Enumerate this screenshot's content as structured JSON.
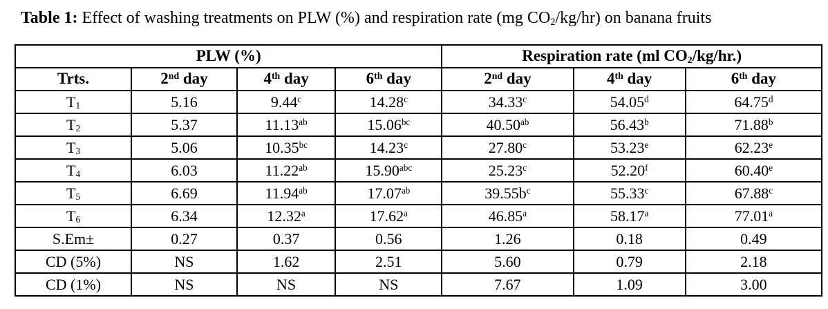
{
  "colors": {
    "background": "#ffffff",
    "text": "#000000",
    "border": "#000000"
  },
  "caption": {
    "segments": [
      {
        "t": "Table 1:",
        "bold": true
      },
      {
        "t": " Effect of washing treatments on PLW (%) and respiration rate (mg CO"
      },
      {
        "t": "2",
        "sub": true
      },
      {
        "t": "/kg/hr) on banana fruits"
      }
    ]
  },
  "table": {
    "group_headers": [
      {
        "colspan": 4,
        "segments": [
          {
            "t": "PLW (%)"
          }
        ]
      },
      {
        "colspan": 3,
        "segments": [
          {
            "t": "Respiration rate (ml CO"
          },
          {
            "t": "2",
            "sub": true
          },
          {
            "t": "/kg/hr.)"
          }
        ]
      }
    ],
    "column_headers": [
      {
        "segments": [
          {
            "t": "Trts."
          }
        ]
      },
      {
        "segments": [
          {
            "t": "2"
          },
          {
            "t": "nd",
            "sup": true
          },
          {
            "t": " day"
          }
        ]
      },
      {
        "segments": [
          {
            "t": "4"
          },
          {
            "t": "th",
            "sup": true
          },
          {
            "t": " day"
          }
        ]
      },
      {
        "segments": [
          {
            "t": "6"
          },
          {
            "t": "th",
            "sup": true
          },
          {
            "t": " day"
          }
        ]
      },
      {
        "segments": [
          {
            "t": "2"
          },
          {
            "t": "nd",
            "sup": true
          },
          {
            "t": " day"
          }
        ]
      },
      {
        "segments": [
          {
            "t": "4"
          },
          {
            "t": "th",
            "sup": true
          },
          {
            "t": " day"
          }
        ]
      },
      {
        "segments": [
          {
            "t": "6"
          },
          {
            "t": "th",
            "sup": true
          },
          {
            "t": " day"
          }
        ]
      }
    ],
    "rows": [
      {
        "label": [
          {
            "t": "T"
          },
          {
            "t": "1",
            "sub": true
          }
        ],
        "cells": [
          [
            {
              "t": "5.16"
            }
          ],
          [
            {
              "t": "9.44"
            },
            {
              "t": "c",
              "sup": true
            }
          ],
          [
            {
              "t": "14.28"
            },
            {
              "t": "c",
              "sup": true
            }
          ],
          [
            {
              "t": "34.33"
            },
            {
              "t": "c",
              "sup": true
            }
          ],
          [
            {
              "t": "54.05"
            },
            {
              "t": "d",
              "sup": true
            }
          ],
          [
            {
              "t": "64.75"
            },
            {
              "t": "d",
              "sup": true
            }
          ]
        ]
      },
      {
        "label": [
          {
            "t": "T"
          },
          {
            "t": "2",
            "sub": true
          }
        ],
        "cells": [
          [
            {
              "t": "5.37"
            }
          ],
          [
            {
              "t": "11.13"
            },
            {
              "t": "ab",
              "sup": true
            }
          ],
          [
            {
              "t": "15.06"
            },
            {
              "t": "bc",
              "sup": true
            }
          ],
          [
            {
              "t": "40.50"
            },
            {
              "t": "ab",
              "sup": true
            }
          ],
          [
            {
              "t": "56.43"
            },
            {
              "t": "b",
              "sup": true
            }
          ],
          [
            {
              "t": "71.88"
            },
            {
              "t": "b",
              "sup": true
            }
          ]
        ]
      },
      {
        "label": [
          {
            "t": "T"
          },
          {
            "t": "3",
            "sub": true
          }
        ],
        "cells": [
          [
            {
              "t": "5.06"
            }
          ],
          [
            {
              "t": "10.35"
            },
            {
              "t": "bc",
              "sup": true
            }
          ],
          [
            {
              "t": "14.23"
            },
            {
              "t": "c",
              "sup": true
            }
          ],
          [
            {
              "t": "27.80"
            },
            {
              "t": "c",
              "sup": true
            }
          ],
          [
            {
              "t": "53.23"
            },
            {
              "t": "e",
              "sup": true
            }
          ],
          [
            {
              "t": "62.23"
            },
            {
              "t": "e",
              "sup": true
            }
          ]
        ]
      },
      {
        "label": [
          {
            "t": "T"
          },
          {
            "t": "4",
            "sub": true
          }
        ],
        "cells": [
          [
            {
              "t": "6.03"
            }
          ],
          [
            {
              "t": "11.22"
            },
            {
              "t": "ab",
              "sup": true
            }
          ],
          [
            {
              "t": "15.90"
            },
            {
              "t": "abc",
              "sup": true
            }
          ],
          [
            {
              "t": "25.23"
            },
            {
              "t": "c",
              "sup": true
            }
          ],
          [
            {
              "t": "52.20"
            },
            {
              "t": "f",
              "sup": true
            }
          ],
          [
            {
              "t": "60.40"
            },
            {
              "t": "e",
              "sup": true
            }
          ]
        ]
      },
      {
        "label": [
          {
            "t": "T"
          },
          {
            "t": "5",
            "sub": true
          }
        ],
        "cells": [
          [
            {
              "t": "6.69"
            }
          ],
          [
            {
              "t": "11.94"
            },
            {
              "t": "ab",
              "sup": true
            }
          ],
          [
            {
              "t": "17.07"
            },
            {
              "t": "ab",
              "sup": true
            }
          ],
          [
            {
              "t": "39.55b"
            },
            {
              "t": "c",
              "sup": true
            }
          ],
          [
            {
              "t": "55.33"
            },
            {
              "t": "c",
              "sup": true
            }
          ],
          [
            {
              "t": "67.88"
            },
            {
              "t": "c",
              "sup": true
            }
          ]
        ]
      },
      {
        "label": [
          {
            "t": "T"
          },
          {
            "t": "6",
            "sub": true
          }
        ],
        "cells": [
          [
            {
              "t": "6.34"
            }
          ],
          [
            {
              "t": "12.32"
            },
            {
              "t": "a",
              "sup": true
            }
          ],
          [
            {
              "t": "17.62"
            },
            {
              "t": "a",
              "sup": true
            }
          ],
          [
            {
              "t": "46.85"
            },
            {
              "t": "a",
              "sup": true
            }
          ],
          [
            {
              "t": "58.17"
            },
            {
              "t": "a",
              "sup": true
            }
          ],
          [
            {
              "t": "77.01"
            },
            {
              "t": "a",
              "sup": true
            }
          ]
        ]
      },
      {
        "label": [
          {
            "t": "S.Em±"
          }
        ],
        "cells": [
          [
            {
              "t": "0.27"
            }
          ],
          [
            {
              "t": "0.37"
            }
          ],
          [
            {
              "t": "0.56"
            }
          ],
          [
            {
              "t": "1.26"
            }
          ],
          [
            {
              "t": "0.18"
            }
          ],
          [
            {
              "t": "0.49"
            }
          ]
        ]
      },
      {
        "label": [
          {
            "t": "CD (5%)"
          }
        ],
        "cells": [
          [
            {
              "t": "NS"
            }
          ],
          [
            {
              "t": "1.62"
            }
          ],
          [
            {
              "t": "2.51"
            }
          ],
          [
            {
              "t": "5.60"
            }
          ],
          [
            {
              "t": "0.79"
            }
          ],
          [
            {
              "t": "2.18"
            }
          ]
        ]
      },
      {
        "label": [
          {
            "t": "CD (1%)"
          }
        ],
        "cells": [
          [
            {
              "t": "NS"
            }
          ],
          [
            {
              "t": "NS"
            }
          ],
          [
            {
              "t": "NS"
            }
          ],
          [
            {
              "t": "7.67"
            }
          ],
          [
            {
              "t": "1.09"
            }
          ],
          [
            {
              "t": "3.00"
            }
          ]
        ]
      }
    ]
  }
}
